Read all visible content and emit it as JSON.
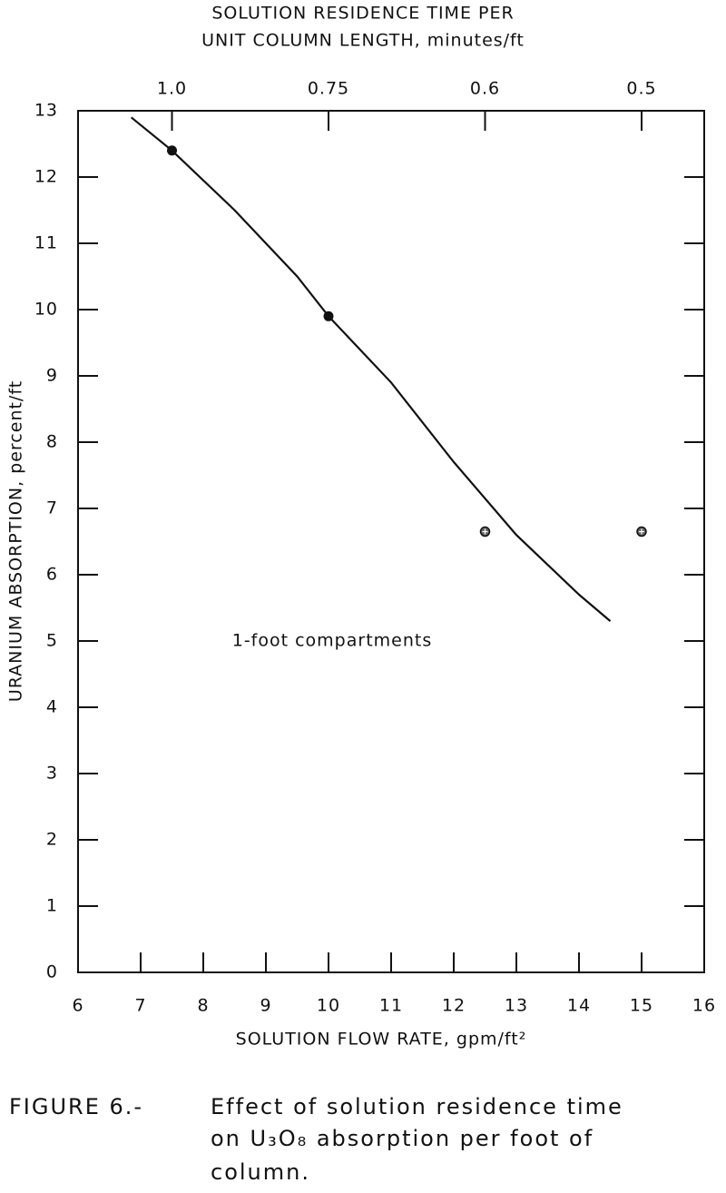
{
  "chart_data": {
    "type": "scatter",
    "x2label": [
      "SOLUTION RESIDENCE TIME PER",
      "UNIT COLUMN LENGTH, minutes/ft"
    ],
    "xlabel": "SOLUTION FLOW RATE, gpm/ft²",
    "ylabel": "URANIUM ABSORPTION, percent/ft",
    "xlim": [
      6,
      16
    ],
    "xticks": [
      6,
      7,
      8,
      9,
      10,
      11,
      12,
      13,
      14,
      15,
      16
    ],
    "ylim": [
      0,
      13
    ],
    "yticks": [
      0,
      1,
      2,
      3,
      4,
      5,
      6,
      7,
      8,
      9,
      10,
      11,
      12,
      13
    ],
    "x2lim": [
      1.25,
      0.46875
    ],
    "x2scale": "reciprocal",
    "x2ticks": [
      {
        "value": 1.0,
        "label": "1.0"
      },
      0.75,
      0.6,
      0.5
    ],
    "series": [
      {
        "type": "line",
        "color": "#111111",
        "x": [
          6.85,
          7.5,
          8.5,
          9.5,
          10,
          11,
          12,
          13,
          14,
          14.5
        ],
        "values": [
          12.9,
          12.4,
          11.5,
          10.5,
          9.9,
          8.9,
          7.7,
          6.6,
          5.7,
          5.3
        ]
      },
      {
        "type": "scatter",
        "marker": "dot",
        "color": "#111111",
        "x": [
          7.5,
          10
        ],
        "values": [
          12.4,
          9.9
        ]
      },
      {
        "type": "scatter",
        "marker": "crossed",
        "color": "#111111",
        "x": [
          12.5,
          15
        ],
        "values": [
          6.65,
          6.65
        ]
      }
    ],
    "annotations": [
      {
        "text": "1-foot compartments"
      }
    ],
    "caption": {
      "label": "FIGURE 6.-",
      "lines": [
        "Effect of solution residence time",
        "on U₃O₈ absorption per foot of",
        "column."
      ]
    }
  }
}
